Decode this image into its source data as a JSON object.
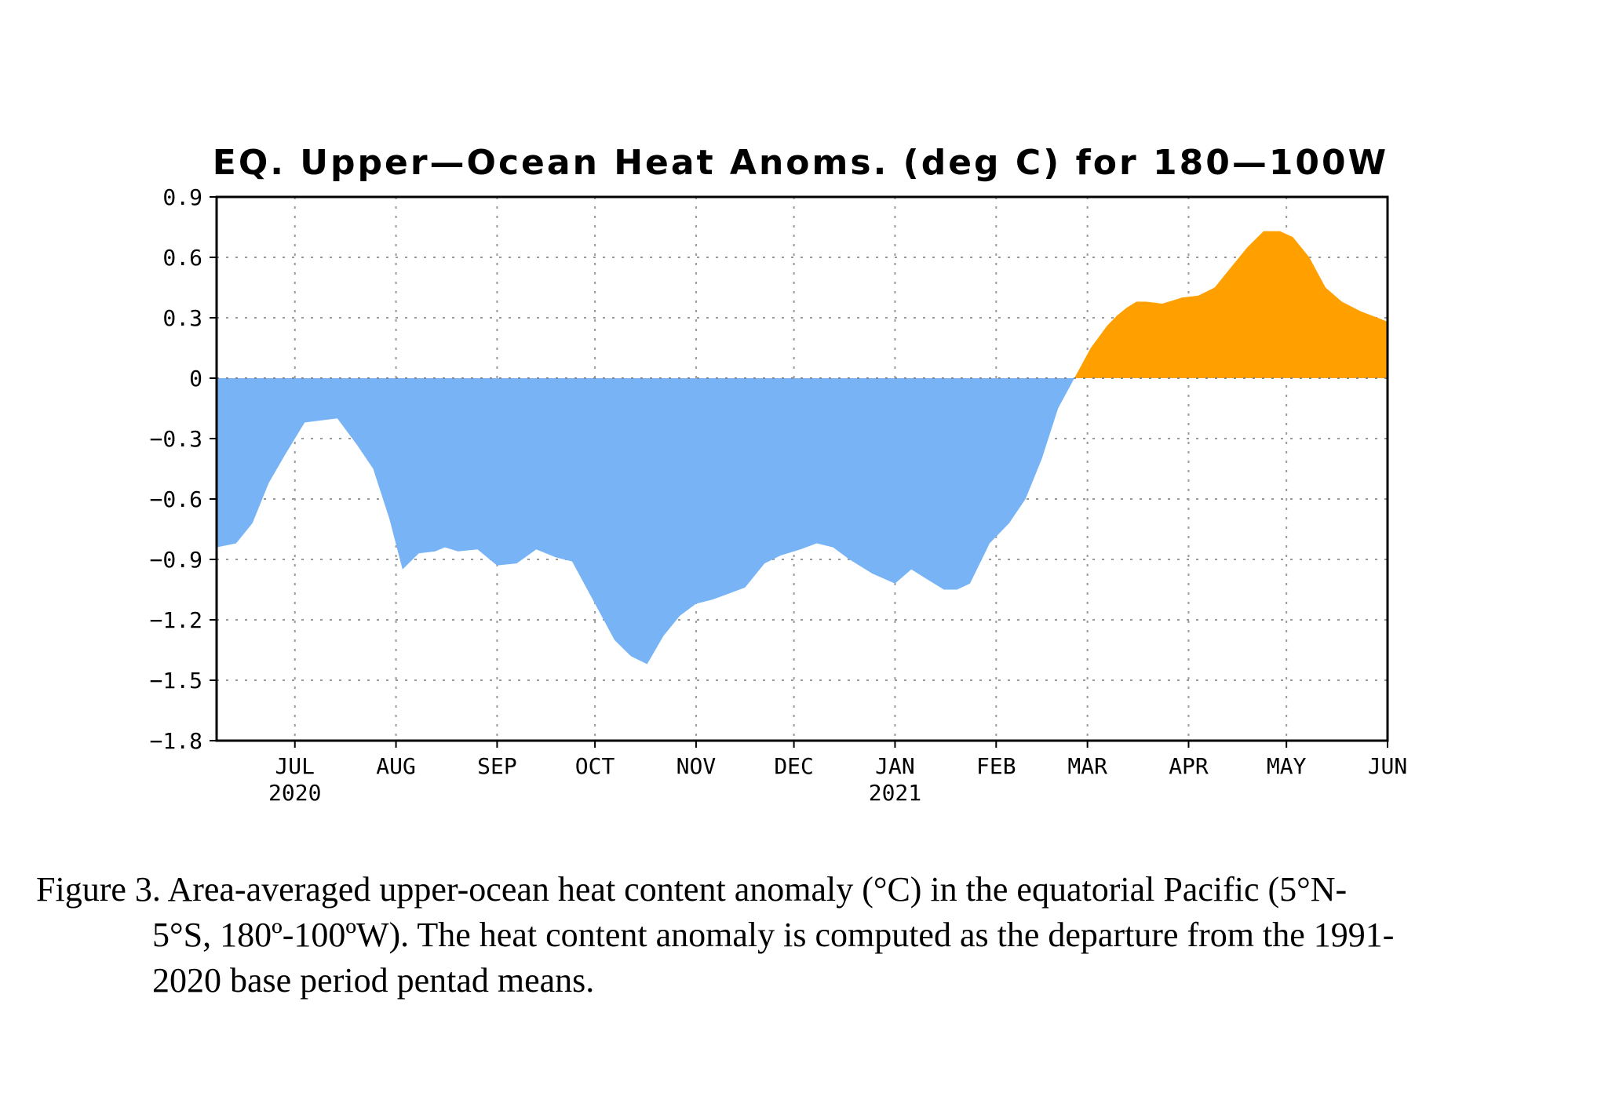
{
  "chart_data": {
    "type": "area",
    "title": "EQ. Upper—Ocean Heat Anoms. (deg C) for 180—100W",
    "xlabel": "",
    "ylabel": "",
    "ylim": [
      -1.8,
      0.9
    ],
    "yticks": [
      0.9,
      0.6,
      0.3,
      0,
      -0.3,
      -0.6,
      -0.9,
      -1.2,
      -1.5,
      -1.8
    ],
    "ytick_labels": [
      "0.9",
      "0.6",
      "0.3",
      "0",
      "−0.3",
      "−0.6",
      "−0.9",
      "−1.2",
      "−1.5",
      "−1.8"
    ],
    "xlim": [
      "2020-06-07",
      "2021-06-01"
    ],
    "xticks": [
      {
        "date": "2020-07-01",
        "label": "JUL",
        "year": "2020"
      },
      {
        "date": "2020-08-01",
        "label": "AUG",
        "year": ""
      },
      {
        "date": "2020-09-01",
        "label": "SEP",
        "year": ""
      },
      {
        "date": "2020-10-01",
        "label": "OCT",
        "year": ""
      },
      {
        "date": "2020-11-01",
        "label": "NOV",
        "year": ""
      },
      {
        "date": "2020-12-01",
        "label": "DEC",
        "year": ""
      },
      {
        "date": "2021-01-01",
        "label": "JAN",
        "year": "2021"
      },
      {
        "date": "2021-02-01",
        "label": "FEB",
        "year": ""
      },
      {
        "date": "2021-03-01",
        "label": "MAR",
        "year": ""
      },
      {
        "date": "2021-04-01",
        "label": "APR",
        "year": ""
      },
      {
        "date": "2021-05-01",
        "label": "MAY",
        "year": ""
      },
      {
        "date": "2021-06-01",
        "label": "JUN",
        "year": ""
      }
    ],
    "grid": true,
    "positive_color": "#ffa000",
    "negative_color": "#78b4f5",
    "series": [
      {
        "x": [
          "2020-06-07",
          "2020-06-13",
          "2020-06-18",
          "2020-06-23",
          "2020-06-28",
          "2020-07-04",
          "2020-07-09",
          "2020-07-14",
          "2020-07-20",
          "2020-07-25",
          "2020-07-30",
          "2020-08-03",
          "2020-08-08",
          "2020-08-13",
          "2020-08-16",
          "2020-08-20",
          "2020-08-26",
          "2020-09-01",
          "2020-09-07",
          "2020-09-13",
          "2020-09-19",
          "2020-09-24",
          "2020-10-02",
          "2020-10-07",
          "2020-10-12",
          "2020-10-17",
          "2020-10-22",
          "2020-10-27",
          "2020-11-01",
          "2020-11-06",
          "2020-11-11",
          "2020-11-16",
          "2020-11-22",
          "2020-11-27",
          "2020-12-03",
          "2020-12-08",
          "2020-12-13",
          "2020-12-18",
          "2020-12-25",
          "2021-01-01",
          "2021-01-06",
          "2021-01-11",
          "2021-01-16",
          "2021-01-20",
          "2021-01-24",
          "2021-01-30",
          "2021-02-05",
          "2021-02-10",
          "2021-02-15",
          "2021-02-20",
          "2021-02-25",
          "2021-03-02",
          "2021-03-07",
          "2021-03-10",
          "2021-03-13",
          "2021-03-16",
          "2021-03-19",
          "2021-03-24",
          "2021-03-30",
          "2021-04-04",
          "2021-04-09",
          "2021-04-14",
          "2021-04-19",
          "2021-04-24",
          "2021-04-29",
          "2021-05-03",
          "2021-05-08",
          "2021-05-13",
          "2021-05-18",
          "2021-05-24",
          "2021-05-29",
          "2021-06-01"
        ],
        "y": [
          -0.84,
          -0.82,
          -0.72,
          -0.52,
          -0.38,
          -0.22,
          -0.21,
          -0.2,
          -0.33,
          -0.45,
          -0.7,
          -0.95,
          -0.87,
          -0.86,
          -0.84,
          -0.86,
          -0.85,
          -0.93,
          -0.92,
          -0.85,
          -0.89,
          -0.91,
          -1.15,
          -1.3,
          -1.38,
          -1.42,
          -1.28,
          -1.18,
          -1.12,
          -1.1,
          -1.07,
          -1.04,
          -0.92,
          -0.88,
          -0.85,
          -0.82,
          -0.84,
          -0.9,
          -0.97,
          -1.02,
          -0.95,
          -1.0,
          -1.05,
          -1.05,
          -1.02,
          -0.82,
          -0.72,
          -0.6,
          -0.4,
          -0.15,
          0.0,
          0.15,
          0.26,
          0.31,
          0.35,
          0.38,
          0.38,
          0.37,
          0.4,
          0.41,
          0.45,
          0.55,
          0.65,
          0.73,
          0.73,
          0.7,
          0.6,
          0.45,
          0.38,
          0.33,
          0.3,
          0.28
        ]
      }
    ]
  },
  "caption": {
    "line1": "Figure 3. Area-averaged upper-ocean heat content anomaly (°C) in the equatorial Pacific (5°N-",
    "line2": "5°S, 180º-100ºW). The heat content anomaly is computed as the departure from the 1991-",
    "line3": "2020 base period pentad means."
  }
}
